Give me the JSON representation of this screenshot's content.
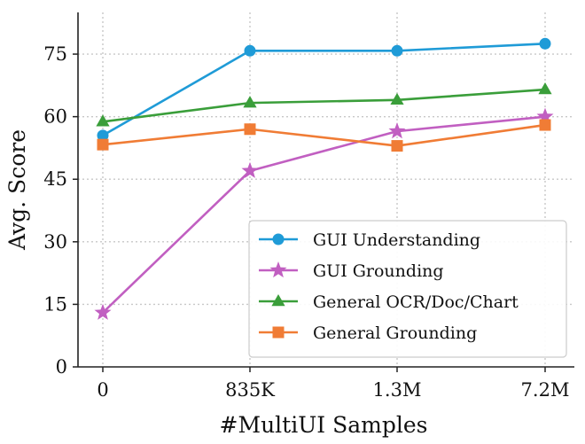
{
  "chart_data": {
    "type": "line",
    "xlabel": "#MultiUI Samples",
    "ylabel": "Avg. Score",
    "categories": [
      "0",
      "835K",
      "1.3M",
      "7.2M"
    ],
    "ylim": [
      0,
      85
    ],
    "yticks": [
      0,
      15,
      30,
      45,
      60,
      75
    ],
    "grid": true,
    "legend_position": "lower-right",
    "series": [
      {
        "name": "GUI Understanding",
        "values": [
          55.5,
          75.8,
          75.8,
          77.5
        ],
        "color": "#1f9bd7",
        "marker": "circle"
      },
      {
        "name": "GUI Grounding",
        "values": [
          13.0,
          47.0,
          56.5,
          60.0
        ],
        "color": "#c15fc1",
        "marker": "star"
      },
      {
        "name": "General OCR/Doc/Chart",
        "values": [
          58.8,
          63.3,
          64.0,
          66.5
        ],
        "color": "#3a9e3a",
        "marker": "triangle"
      },
      {
        "name": "General Grounding",
        "values": [
          53.3,
          57.0,
          53.0,
          58.0
        ],
        "color": "#f07c35",
        "marker": "square"
      }
    ]
  }
}
